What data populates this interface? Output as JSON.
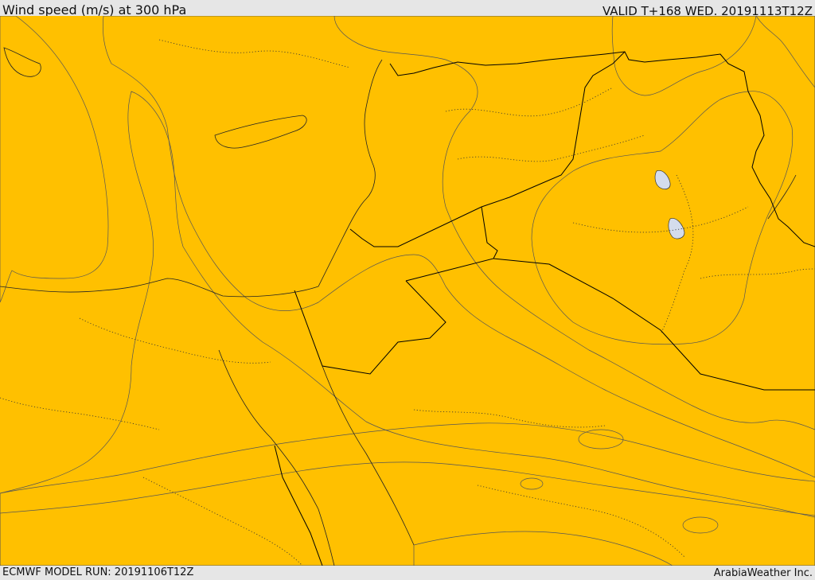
{
  "header": {
    "title": "Wind speed (m/s) at 300 hPa",
    "valid": "VALID T+168 WED. 20191113T12Z"
  },
  "footer": {
    "model_run": "ECMWF MODEL RUN: 20191106T12Z",
    "credit": "ArabiaWeather Inc."
  },
  "map": {
    "variable": "wind speed",
    "level": "300 hPa",
    "colors": {
      "band_1": "#ffe0a8",
      "band_2": "#ffff00",
      "band_3": "#ffde00",
      "band_4": "#ffc000",
      "band_5": "#ffa000",
      "band_6": "#ff8000",
      "band_7": "#ff6000",
      "band_8": "#ff4000",
      "lake": "#d4dcec"
    }
  }
}
